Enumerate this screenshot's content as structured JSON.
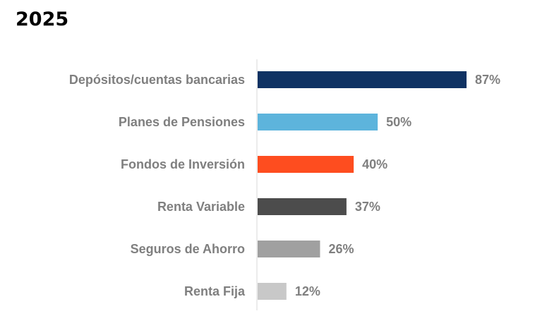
{
  "chart_data": {
    "type": "bar",
    "orientation": "horizontal",
    "title": "2025",
    "categories": [
      "Depósitos/cuentas bancarias",
      "Planes de Pensiones",
      "Fondos de Inversión",
      "Renta Variable",
      "Seguros de Ahorro",
      "Renta Fija"
    ],
    "values": [
      87,
      50,
      40,
      37,
      26,
      12
    ],
    "value_labels": [
      "87%",
      "50%",
      "40%",
      "37%",
      "26%",
      "12%"
    ],
    "colors": [
      "#0f3263",
      "#5db4dc",
      "#fe4d1f",
      "#4c4c4c",
      "#a0a0a0",
      "#c8c8c8"
    ],
    "xlim": [
      0,
      100
    ],
    "grid": false,
    "legend": "none"
  }
}
